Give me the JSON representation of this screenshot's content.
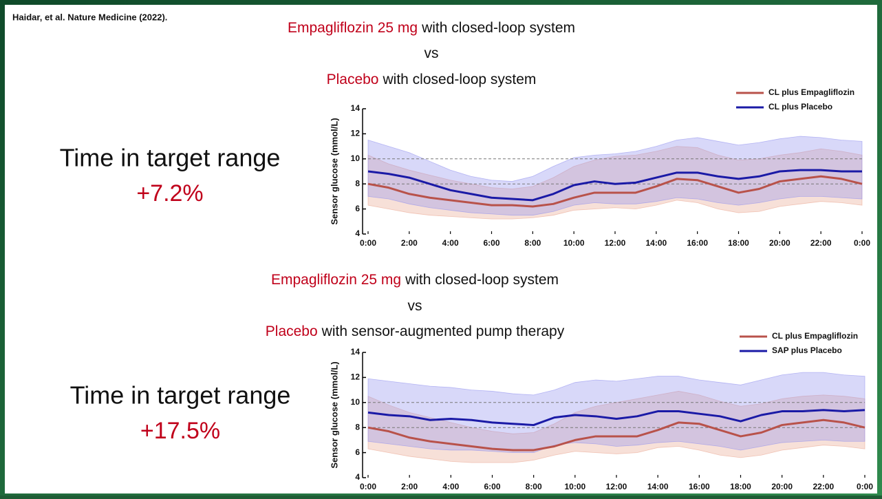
{
  "citation": "Haidar, et al. Nature Medicine (2022).",
  "chart_data": [
    {
      "type": "line",
      "title_lines": [
        {
          "highlight": "Empagliflozin 25 mg",
          "text": "with closed-loop system"
        },
        {
          "text": "vs"
        },
        {
          "highlight": "Placebo",
          "text": "with closed-loop system"
        }
      ],
      "annotation": {
        "label": "Time in target range",
        "value": "+7.2%"
      },
      "y_label": "Sensor glucose (mmol/L)",
      "x": [
        0,
        1,
        2,
        3,
        4,
        5,
        6,
        7,
        8,
        9,
        10,
        11,
        12,
        13,
        14,
        15,
        16,
        17,
        18,
        19,
        20,
        21,
        22,
        23,
        24
      ],
      "xlim": [
        0,
        24
      ],
      "xticks": [
        {
          "value": 0,
          "label": "0:00"
        },
        {
          "value": 2,
          "label": "2:00"
        },
        {
          "value": 4,
          "label": "4:00"
        },
        {
          "value": 6,
          "label": "6:00"
        },
        {
          "value": 8,
          "label": "8:00"
        },
        {
          "value": 10,
          "label": "10:00"
        },
        {
          "value": 12,
          "label": "12:00"
        },
        {
          "value": 14,
          "label": "14:00"
        },
        {
          "value": 16,
          "label": "16:00"
        },
        {
          "value": 18,
          "label": "18:00"
        },
        {
          "value": 20,
          "label": "20:00"
        },
        {
          "value": 22,
          "label": "22:00"
        },
        {
          "value": 24,
          "label": "0:00"
        }
      ],
      "ylim": [
        4,
        14
      ],
      "yticks": [
        4,
        6,
        8,
        10,
        12,
        14
      ],
      "reference_lines": [
        10,
        8
      ],
      "legend": "top-right",
      "series": [
        {
          "name": "CL plus Empagliflozin",
          "color": "#b8524a",
          "band_color": "#e9a58f",
          "values": [
            8.0,
            7.7,
            7.2,
            6.9,
            6.7,
            6.5,
            6.3,
            6.3,
            6.2,
            6.4,
            6.9,
            7.3,
            7.3,
            7.3,
            7.8,
            8.4,
            8.3,
            7.8,
            7.3,
            7.6,
            8.2,
            8.4,
            8.6,
            8.4,
            8.0
          ],
          "upper": [
            10.3,
            9.6,
            9.1,
            8.7,
            8.3,
            8.0,
            7.7,
            7.6,
            7.8,
            8.5,
            9.4,
            9.9,
            10.2,
            10.3,
            10.6,
            11.0,
            10.9,
            10.3,
            9.9,
            10.0,
            10.3,
            10.5,
            10.8,
            10.6,
            10.3
          ],
          "lower": [
            6.3,
            6.0,
            5.7,
            5.5,
            5.4,
            5.3,
            5.2,
            5.2,
            5.3,
            5.5,
            5.9,
            6.0,
            6.1,
            6.0,
            6.3,
            6.7,
            6.5,
            6.0,
            5.7,
            5.8,
            6.2,
            6.4,
            6.6,
            6.5,
            6.3
          ]
        },
        {
          "name": "CL plus Placebo",
          "color": "#1a1aa6",
          "band_color": "#8f8fef",
          "values": [
            9.0,
            8.8,
            8.5,
            8.0,
            7.5,
            7.2,
            6.9,
            6.8,
            6.7,
            7.2,
            7.9,
            8.2,
            8.0,
            8.1,
            8.5,
            8.9,
            8.9,
            8.6,
            8.4,
            8.6,
            9.0,
            9.1,
            9.1,
            9.0,
            9.0
          ],
          "upper": [
            11.5,
            11.0,
            10.5,
            9.8,
            9.1,
            8.6,
            8.3,
            8.2,
            8.6,
            9.4,
            10.1,
            10.3,
            10.4,
            10.6,
            11.0,
            11.5,
            11.7,
            11.4,
            11.1,
            11.3,
            11.6,
            11.8,
            11.7,
            11.5,
            11.4
          ],
          "lower": [
            7.0,
            6.8,
            6.4,
            6.1,
            5.9,
            5.7,
            5.6,
            5.5,
            5.5,
            5.8,
            6.3,
            6.5,
            6.4,
            6.4,
            6.6,
            6.9,
            6.8,
            6.5,
            6.3,
            6.5,
            6.8,
            7.0,
            7.0,
            6.9,
            6.8
          ]
        }
      ]
    },
    {
      "type": "line",
      "title_lines": [
        {
          "highlight": "Empagliflozin 25 mg",
          "text": "with closed-loop system"
        },
        {
          "text": "vs"
        },
        {
          "highlight": "Placebo",
          "text": "with sensor-augmented pump therapy"
        }
      ],
      "annotation": {
        "label": "Time in target range",
        "value": "+17.5%"
      },
      "y_label": "Sensor glucose (mmol/L)",
      "x": [
        0,
        1,
        2,
        3,
        4,
        5,
        6,
        7,
        8,
        9,
        10,
        11,
        12,
        13,
        14,
        15,
        16,
        17,
        18,
        19,
        20,
        21,
        22,
        23,
        24
      ],
      "xlim": [
        0,
        24
      ],
      "xticks": [
        {
          "value": 0,
          "label": "0:00"
        },
        {
          "value": 2,
          "label": "2:00"
        },
        {
          "value": 4,
          "label": "4:00"
        },
        {
          "value": 6,
          "label": "6:00"
        },
        {
          "value": 8,
          "label": "8:00"
        },
        {
          "value": 10,
          "label": "10:00"
        },
        {
          "value": 12,
          "label": "12:00"
        },
        {
          "value": 14,
          "label": "14:00"
        },
        {
          "value": 16,
          "label": "16:00"
        },
        {
          "value": 18,
          "label": "18:00"
        },
        {
          "value": 20,
          "label": "20:00"
        },
        {
          "value": 22,
          "label": "22:00"
        },
        {
          "value": 24,
          "label": "0:00"
        }
      ],
      "ylim": [
        4,
        14
      ],
      "yticks": [
        4,
        6,
        8,
        10,
        12,
        14
      ],
      "reference_lines": [
        10,
        8
      ],
      "legend": "top-right",
      "series": [
        {
          "name": "CL plus Empagliflozin",
          "color": "#b8524a",
          "band_color": "#e9a58f",
          "values": [
            8.0,
            7.7,
            7.2,
            6.9,
            6.7,
            6.5,
            6.3,
            6.2,
            6.2,
            6.5,
            7.0,
            7.3,
            7.3,
            7.3,
            7.8,
            8.4,
            8.3,
            7.8,
            7.3,
            7.6,
            8.2,
            8.4,
            8.6,
            8.4,
            8.0
          ],
          "upper": [
            10.5,
            9.8,
            9.2,
            8.8,
            8.4,
            8.0,
            7.7,
            7.5,
            7.6,
            8.3,
            9.2,
            9.7,
            10.0,
            10.3,
            10.6,
            10.9,
            10.6,
            10.1,
            9.7,
            9.9,
            10.3,
            10.5,
            10.6,
            10.5,
            10.3
          ],
          "lower": [
            6.3,
            6.0,
            5.7,
            5.5,
            5.3,
            5.2,
            5.2,
            5.2,
            5.4,
            5.8,
            6.1,
            6.0,
            5.9,
            6.0,
            6.4,
            6.5,
            6.2,
            5.8,
            5.6,
            5.8,
            6.2,
            6.4,
            6.6,
            6.5,
            6.3
          ]
        },
        {
          "name": "SAP plus Placebo",
          "color": "#1a1aa6",
          "band_color": "#8f8fef",
          "values": [
            9.2,
            9.0,
            8.9,
            8.6,
            8.7,
            8.6,
            8.4,
            8.3,
            8.2,
            8.8,
            9.0,
            8.9,
            8.7,
            8.9,
            9.3,
            9.3,
            9.1,
            8.9,
            8.5,
            9.0,
            9.3,
            9.3,
            9.4,
            9.3,
            9.4
          ],
          "upper": [
            11.9,
            11.7,
            11.5,
            11.3,
            11.2,
            11.0,
            10.9,
            10.7,
            10.6,
            11.0,
            11.6,
            11.8,
            11.7,
            11.9,
            12.1,
            12.1,
            11.8,
            11.6,
            11.4,
            11.8,
            12.2,
            12.4,
            12.4,
            12.2,
            12.1
          ],
          "lower": [
            6.9,
            6.7,
            6.5,
            6.3,
            6.2,
            6.2,
            6.1,
            6.0,
            6.0,
            6.6,
            6.8,
            6.7,
            6.5,
            6.6,
            6.8,
            6.9,
            6.7,
            6.5,
            6.2,
            6.5,
            6.8,
            6.9,
            7.0,
            6.9,
            6.9
          ]
        }
      ]
    }
  ]
}
